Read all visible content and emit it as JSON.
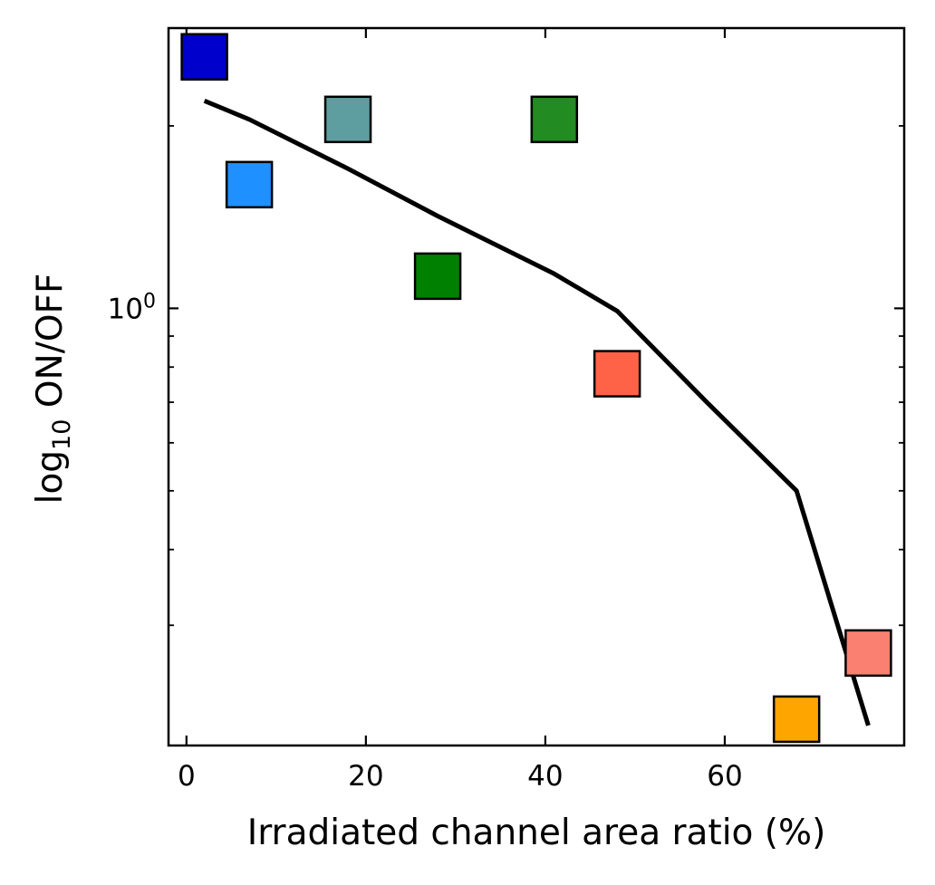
{
  "chart_data": {
    "type": "scatter",
    "xlabel": "Irradiated channel area ratio (%)",
    "ylabel_main": "log",
    "ylabel_sub": "10",
    "ylabel_rest": " ON/OFF",
    "xlim": [
      -2,
      80
    ],
    "ylim": [
      0.19,
      2.9
    ],
    "yscale": "log",
    "grid": false,
    "x_ticks": [
      0,
      20,
      40,
      60
    ],
    "y_major_ticks": [
      1.0
    ],
    "y_major_tick_labels": [
      {
        "base": "10",
        "exp": "0"
      }
    ],
    "y_minor_ticks": [
      0.3,
      0.4,
      0.5,
      0.6,
      0.7,
      0.8,
      0.9,
      2.0
    ],
    "points": [
      {
        "x": 2,
        "y": 2.6,
        "color": "#0000CD"
      },
      {
        "x": 7,
        "y": 1.6,
        "color": "#1E90FF"
      },
      {
        "x": 18,
        "y": 2.05,
        "color": "#5F9EA0"
      },
      {
        "x": 28,
        "y": 1.13,
        "color": "#008000"
      },
      {
        "x": 41,
        "y": 2.05,
        "color": "#228B22"
      },
      {
        "x": 48,
        "y": 0.78,
        "color": "#FF6347"
      },
      {
        "x": 68,
        "y": 0.21,
        "color": "#FFA500"
      },
      {
        "x": 76,
        "y": 0.27,
        "color": "#FA8072"
      }
    ],
    "fit_line": {
      "color": "#000000",
      "x": [
        2,
        7,
        18,
        28,
        41,
        48,
        58,
        68,
        76
      ],
      "y": [
        2.2,
        2.05,
        1.7,
        1.42,
        1.14,
        0.99,
        0.7,
        0.5,
        0.205
      ]
    }
  }
}
